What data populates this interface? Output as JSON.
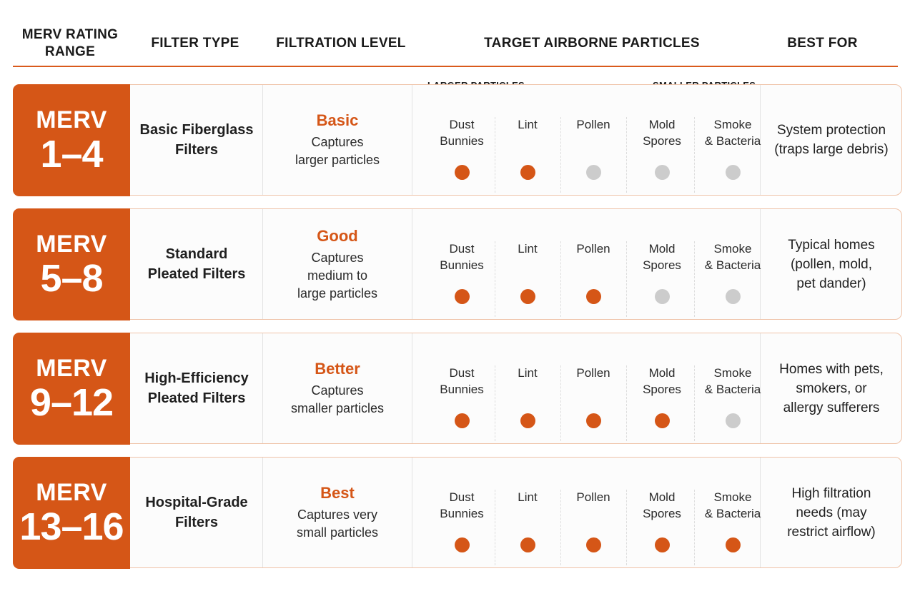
{
  "header": {
    "col1": "MERV RATING\nRANGE",
    "col2": "FILTER TYPE",
    "col3": "FILTRATION LEVEL",
    "col4": "TARGET AIRBORNE PARTICLES",
    "col5": "BEST FOR"
  },
  "scale": {
    "left": "LARGER PARTICLES",
    "right": "SMALLER PARTICLES"
  },
  "particle_labels": [
    "Dust\nBunnies",
    "Lint",
    "Pollen",
    "Mold\nSpores",
    "Smoke\n& Bacteria"
  ],
  "colors": {
    "accent": "#d55617",
    "inactive_dot": "#cccccc",
    "row_border": "#efc3a8"
  },
  "rows": [
    {
      "merv": "MERV",
      "range": "1–4",
      "filter_type": "Basic Fiberglass\nFilters",
      "level": "Basic",
      "level_desc": "Captures\nlarger particles",
      "captures": [
        true,
        true,
        false,
        false,
        false
      ],
      "best_for": "System protection\n(traps large debris)"
    },
    {
      "merv": "MERV",
      "range": "5–8",
      "filter_type": "Standard\nPleated Filters",
      "level": "Good",
      "level_desc": "Captures\nmedium to\nlarge particles",
      "captures": [
        true,
        true,
        true,
        false,
        false
      ],
      "best_for": "Typical homes\n(pollen, mold,\npet dander)"
    },
    {
      "merv": "MERV",
      "range": "9–12",
      "filter_type": "High-Efficiency\nPleated Filters",
      "level": "Better",
      "level_desc": "Captures\nsmaller particles",
      "captures": [
        true,
        true,
        true,
        true,
        false
      ],
      "best_for": "Homes with pets,\nsmokers, or\nallergy sufferers"
    },
    {
      "merv": "MERV",
      "range": "13–16",
      "filter_type": "Hospital-Grade\nFilters",
      "level": "Best",
      "level_desc": "Captures very\nsmall particles",
      "captures": [
        true,
        true,
        true,
        true,
        true
      ],
      "best_for": "High filtration\nneeds (may\nrestrict airflow)"
    }
  ]
}
